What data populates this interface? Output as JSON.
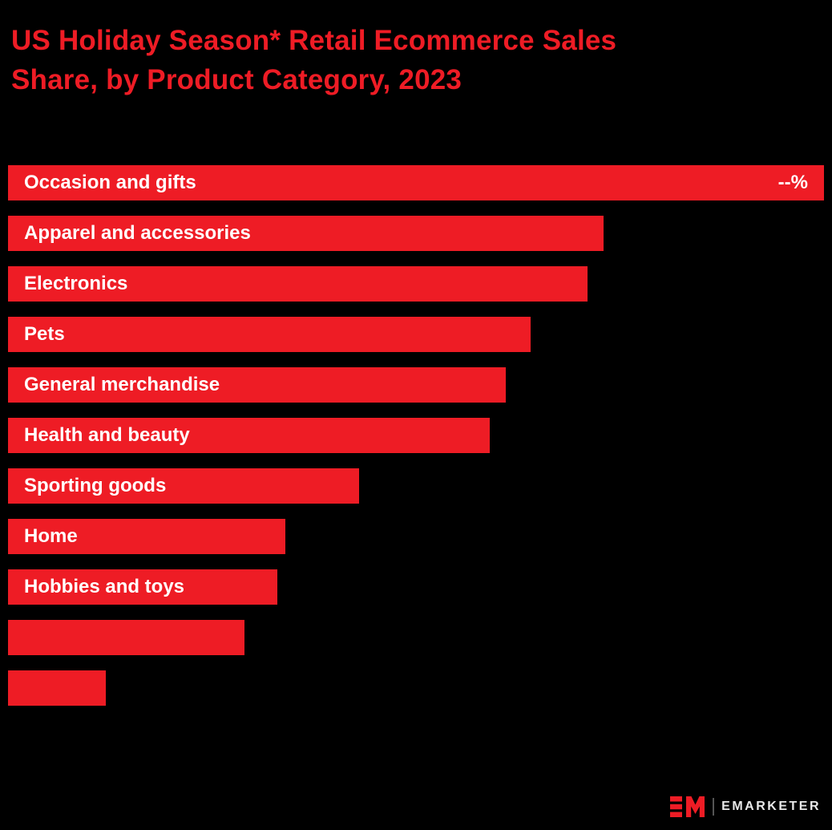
{
  "title": {
    "line1": "US Holiday Season* Retail Ecommerce Sales",
    "line2": "Share, by Product Category, 2023",
    "full": "US Holiday Season* Retail Ecommerce Sales Share, by Product Category, 2023"
  },
  "chart_data": {
    "type": "bar",
    "orientation": "horizontal",
    "title": "US Holiday Season* Retail Ecommerce Sales Share, by Product Category, 2023",
    "categories": [
      "Occasion and gifts",
      "Apparel and accessories",
      "Electronics",
      "Pets",
      "General merchandise",
      "Health and beauty",
      "Sporting goods",
      "Home",
      "Hobbies and toys",
      "",
      ""
    ],
    "values": [
      100,
      73,
      71,
      64,
      61,
      59,
      43,
      34,
      33,
      29,
      12
    ],
    "value_labels": [
      "--%",
      "",
      "",
      "",
      "",
      "",
      "",
      "",
      "",
      "",
      ""
    ],
    "xlabel": "",
    "ylabel": "",
    "xlim": [
      0,
      100
    ],
    "grid": false,
    "legend": false,
    "bar_color": "#EE1C25",
    "label_color": "#FFFFFF",
    "note": "values suppressed in source; bar lengths are relative share estimates"
  },
  "colors": {
    "accent_red": "#EE1C25",
    "background": "#000000",
    "bar_text": "#FFFFFF"
  },
  "footer": {
    "logo_text": "EMARKETER"
  }
}
